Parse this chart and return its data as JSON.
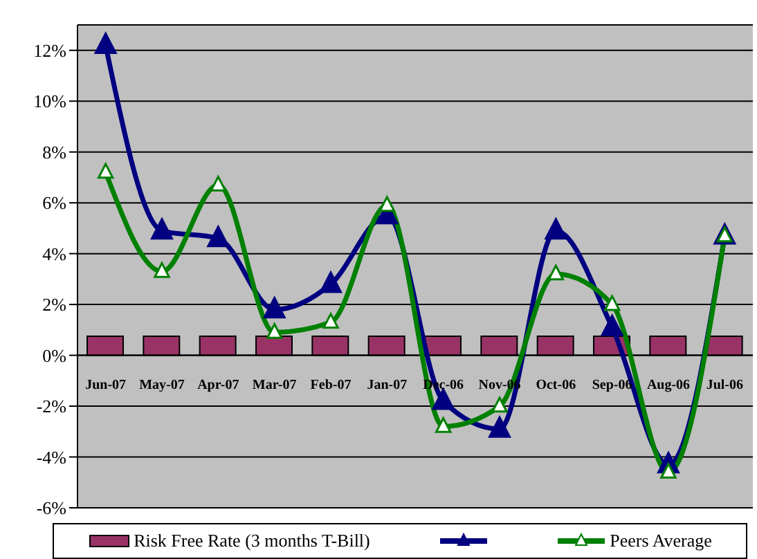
{
  "chart_data": {
    "type": "bar",
    "categories": [
      "Jun-07",
      "May-07",
      "Apr-07",
      "Mar-07",
      "Feb-07",
      "Jan-07",
      "Dec-06",
      "Nov-06",
      "Oct-06",
      "Sep-06",
      "Aug-06",
      "Jul-06"
    ],
    "series": [
      {
        "name": "Risk Free Rate (3 months T-Bill)",
        "color": "#993366",
        "values": [
          0.75,
          0.75,
          0.75,
          0.75,
          0.75,
          0.75,
          0.75,
          0.75,
          0.75,
          0.75,
          0.75,
          0.75
        ]
      },
      {
        "type": "line",
        "color": "#000080",
        "values": [
          12.2,
          4.9,
          4.6,
          1.8,
          2.8,
          5.5,
          -1.8,
          -2.9,
          4.9,
          1.1,
          -4.3,
          4.7
        ]
      },
      {
        "name": "Peers Average",
        "type": "line",
        "color": "#008000",
        "values": [
          7.2,
          3.3,
          6.7,
          0.9,
          1.3,
          5.9,
          -2.8,
          -2.0,
          3.2,
          2.0,
          -4.6,
          4.7
        ]
      }
    ],
    "ylim": [
      -6,
      13
    ],
    "yticks": [
      {
        "value": -6,
        "label": "-6%"
      },
      {
        "value": -4,
        "label": "-4%"
      },
      {
        "value": -2,
        "label": "-2%"
      },
      {
        "value": 0,
        "label": "0%"
      },
      {
        "value": 2,
        "label": "2%"
      },
      {
        "value": 4,
        "label": "4%"
      },
      {
        "value": 6,
        "label": "6%"
      },
      {
        "value": 8,
        "label": "8%"
      },
      {
        "value": 10,
        "label": "10%"
      },
      {
        "value": 12,
        "label": "12%"
      }
    ],
    "grid": "y",
    "legend": "bottom",
    "marker": "triangle",
    "line_style": "solid"
  }
}
